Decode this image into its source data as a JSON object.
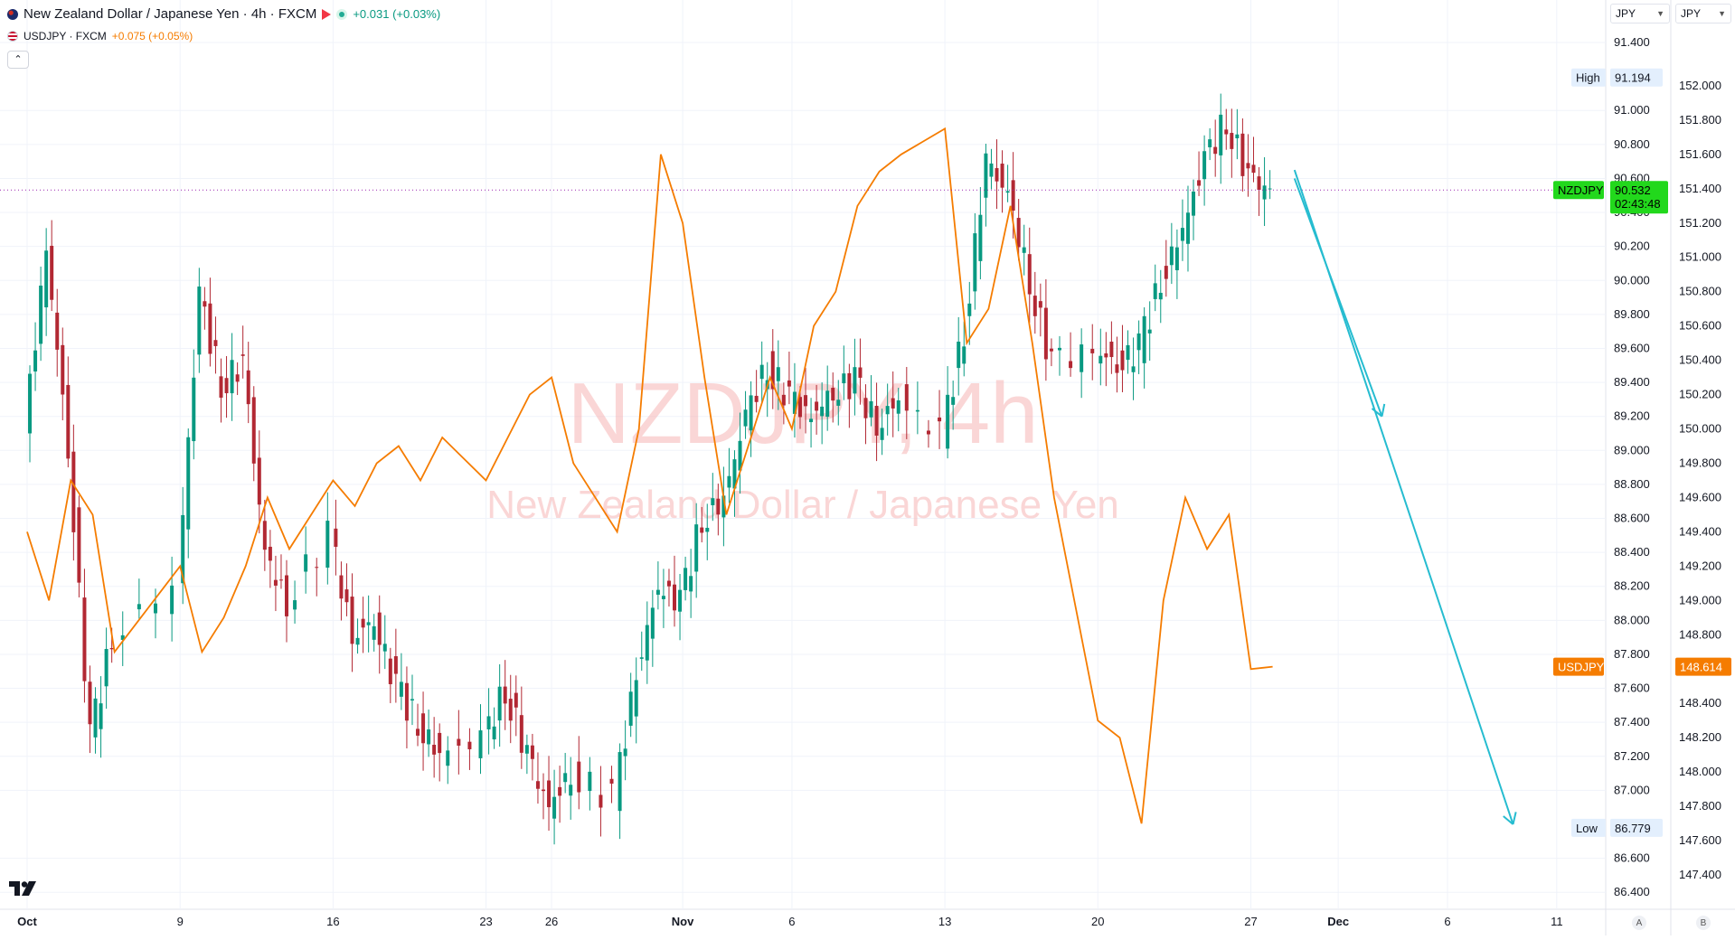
{
  "legend": {
    "main_title": "New Zealand Dollar / Japanese Yen · 4h · FXCM",
    "main_change": "+0.031 (+0.03%)",
    "compare_symbol": "USDJPY · FXCM",
    "compare_change": "+0.075 (+0.05%)",
    "collapse_glyph": "⌃",
    "icons": {
      "nz_flag": "nz-flag-icon",
      "us_flag": "us-flag-icon",
      "alert": "red-flag-icon",
      "market_status": "market-open-dot-icon"
    }
  },
  "watermark": {
    "symbol": "NZDJPY, 4h",
    "name": "New Zealand Dollar / Japanese Yen"
  },
  "currency_selectors": {
    "left": "JPY",
    "right": "JPY"
  },
  "scale_buttons": {
    "auto": "A",
    "log": "B"
  },
  "colors": {
    "up": "#089981",
    "down": "#b22833",
    "usdjpy": "#f57c00",
    "badge": "#22d81c",
    "arrow": "#26bcd0",
    "watermark": "#f5b5b5"
  },
  "chart_data": {
    "type": "line",
    "x_axis": {
      "tick_labels": [
        "Oct",
        "9",
        "16",
        "23",
        "26",
        "Nov",
        "6",
        "13",
        "20",
        "27",
        "Dec",
        "6",
        "11"
      ],
      "range_dates": [
        "2023-10-02",
        "2023-12-12"
      ]
    },
    "axes": {
      "nzdjpy": {
        "range": [
          86.3,
          91.65
        ],
        "tick_labels": [
          "91.400",
          "91.000",
          "90.800",
          "90.600",
          "90.400",
          "90.200",
          "90.000",
          "89.800",
          "89.600",
          "89.400",
          "89.200",
          "89.000",
          "88.800",
          "88.600",
          "88.400",
          "88.200",
          "88.000",
          "87.800",
          "87.600",
          "87.400",
          "87.200",
          "87.000",
          "86.600",
          "86.400"
        ]
      },
      "usdjpy": {
        "range": [
          147.2,
          152.5
        ],
        "tick_labels": [
          "152.000",
          "151.800",
          "151.600",
          "151.400",
          "151.200",
          "151.000",
          "150.800",
          "150.600",
          "150.400",
          "150.200",
          "150.000",
          "149.800",
          "149.600",
          "149.400",
          "149.200",
          "149.000",
          "148.800",
          "148.600",
          "148.400",
          "148.200",
          "148.000",
          "147.800",
          "147.600",
          "147.400"
        ]
      }
    },
    "series": [
      {
        "name": "NZDJPY",
        "type": "candlestick",
        "points": [
          [
            "2023-10-02",
            89.1
          ],
          [
            "2023-10-03",
            90.2
          ],
          [
            "2023-10-04",
            89.0
          ],
          [
            "2023-10-05",
            87.3
          ],
          [
            "2023-10-06",
            87.9
          ],
          [
            "2023-10-09",
            88.2
          ],
          [
            "2023-10-10",
            89.9
          ],
          [
            "2023-10-11",
            89.4
          ],
          [
            "2023-10-12",
            89.5
          ],
          [
            "2023-10-13",
            88.4
          ],
          [
            "2023-10-14",
            88.1
          ],
          [
            "2023-10-16",
            88.5
          ],
          [
            "2023-10-17",
            87.9
          ],
          [
            "2023-10-18",
            88.0
          ],
          [
            "2023-10-19",
            87.6
          ],
          [
            "2023-10-20",
            87.4
          ],
          [
            "2023-10-21",
            87.2
          ],
          [
            "2023-10-23",
            87.3
          ],
          [
            "2023-10-24",
            87.6
          ],
          [
            "2023-10-25",
            87.2
          ],
          [
            "2023-10-26",
            86.9
          ],
          [
            "2023-10-27",
            87.1
          ],
          [
            "2023-10-29",
            86.95
          ],
          [
            "2023-10-30",
            87.7
          ],
          [
            "2023-10-31",
            88.2
          ],
          [
            "2023-11-01",
            88.1
          ],
          [
            "2023-11-02",
            88.6
          ],
          [
            "2023-11-03",
            88.7
          ],
          [
            "2023-11-04",
            89.2
          ],
          [
            "2023-11-05",
            89.5
          ],
          [
            "2023-11-06",
            89.3
          ],
          [
            "2023-11-07",
            89.2
          ],
          [
            "2023-11-08",
            89.35
          ],
          [
            "2023-11-09",
            89.4
          ],
          [
            "2023-11-10",
            89.15
          ],
          [
            "2023-11-11",
            89.3
          ],
          [
            "2023-11-13",
            89.1
          ],
          [
            "2023-11-14",
            89.7
          ],
          [
            "2023-11-15",
            90.7
          ],
          [
            "2023-11-16",
            90.5
          ],
          [
            "2023-11-17",
            90.0
          ],
          [
            "2023-11-18",
            89.5
          ],
          [
            "2023-11-20",
            89.6
          ],
          [
            "2023-11-21",
            89.5
          ],
          [
            "2023-11-22",
            89.6
          ],
          [
            "2023-11-23",
            90.0
          ],
          [
            "2023-11-24",
            90.3
          ],
          [
            "2023-11-25",
            90.7
          ],
          [
            "2023-11-26",
            90.95
          ],
          [
            "2023-11-27",
            90.6
          ],
          [
            "2023-11-28",
            90.53
          ]
        ],
        "high": 91.194,
        "low": 86.779,
        "last": 90.532,
        "countdown": "02:43:48"
      },
      {
        "name": "USDJPY",
        "type": "line",
        "points": [
          [
            "2023-10-02",
            149.4
          ],
          [
            "2023-10-03",
            149.0
          ],
          [
            "2023-10-04",
            149.7
          ],
          [
            "2023-10-05",
            149.5
          ],
          [
            "2023-10-06",
            148.7
          ],
          [
            "2023-10-09",
            149.2
          ],
          [
            "2023-10-10",
            148.7
          ],
          [
            "2023-10-11",
            148.9
          ],
          [
            "2023-10-12",
            149.2
          ],
          [
            "2023-10-13",
            149.6
          ],
          [
            "2023-10-14",
            149.3
          ],
          [
            "2023-10-16",
            149.7
          ],
          [
            "2023-10-17",
            149.55
          ],
          [
            "2023-10-18",
            149.8
          ],
          [
            "2023-10-19",
            149.9
          ],
          [
            "2023-10-20",
            149.7
          ],
          [
            "2023-10-21",
            149.95
          ],
          [
            "2023-10-23",
            149.7
          ],
          [
            "2023-10-24",
            149.95
          ],
          [
            "2023-10-25",
            150.2
          ],
          [
            "2023-10-26",
            150.3
          ],
          [
            "2023-10-27",
            149.8
          ],
          [
            "2023-10-29",
            149.4
          ],
          [
            "2023-10-30",
            150.0
          ],
          [
            "2023-10-31",
            151.6
          ],
          [
            "2023-11-01",
            151.2
          ],
          [
            "2023-11-02",
            150.3
          ],
          [
            "2023-11-03",
            149.5
          ],
          [
            "2023-11-04",
            149.9
          ],
          [
            "2023-11-05",
            150.3
          ],
          [
            "2023-11-06",
            150.0
          ],
          [
            "2023-11-07",
            150.6
          ],
          [
            "2023-11-08",
            150.8
          ],
          [
            "2023-11-09",
            151.3
          ],
          [
            "2023-11-10",
            151.5
          ],
          [
            "2023-11-11",
            151.6
          ],
          [
            "2023-11-13",
            151.75
          ],
          [
            "2023-11-14",
            150.5
          ],
          [
            "2023-11-15",
            150.7
          ],
          [
            "2023-11-16",
            151.3
          ],
          [
            "2023-11-17",
            150.5
          ],
          [
            "2023-11-18",
            149.6
          ],
          [
            "2023-11-20",
            148.3
          ],
          [
            "2023-11-21",
            148.2
          ],
          [
            "2023-11-22",
            147.7
          ],
          [
            "2023-11-23",
            149.0
          ],
          [
            "2023-11-24",
            149.6
          ],
          [
            "2023-11-25",
            149.3
          ],
          [
            "2023-11-26",
            149.5
          ],
          [
            "2023-11-27",
            148.6
          ],
          [
            "2023-11-28",
            148.614
          ]
        ],
        "last": 148.614
      }
    ],
    "reference_lines": [
      {
        "series": "NZDJPY",
        "value": 90.532,
        "style": "dotted"
      }
    ],
    "annotations": [
      {
        "type": "arrow",
        "from": [
          "2023-11-29",
          90.6
        ],
        "to": [
          "2023-12-03",
          89.2
        ]
      },
      {
        "type": "arrow",
        "from": [
          "2023-11-29",
          90.65
        ],
        "to": [
          "2023-12-09",
          86.8
        ]
      }
    ],
    "badges": {
      "high_label": "High",
      "low_label": "Low",
      "nzd_label": "NZDJPY",
      "usd_label": "USDJPY"
    },
    "watermark_text": "NZDJPY, 4h",
    "grid": true,
    "legend_position": "top-left"
  }
}
